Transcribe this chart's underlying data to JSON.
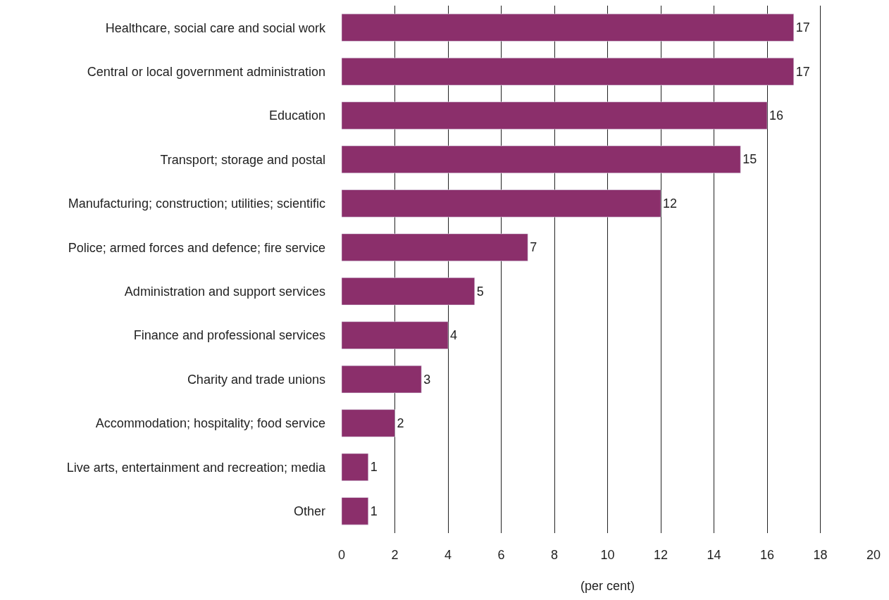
{
  "chart_data": {
    "type": "bar",
    "orientation": "horizontal",
    "xlabel": "(per cent)",
    "categories": [
      "Healthcare, social care and social work",
      "Central or local government administration",
      "Education",
      "Transport; storage and postal",
      "Manufacturing; construction; utilities; scientific",
      "Police; armed forces and defence; fire service",
      "Administration and support services",
      "Finance and professional services",
      "Charity and trade unions",
      "Accommodation; hospitality; food service",
      "Live arts, entertainment and recreation; media",
      "Other"
    ],
    "values": [
      17,
      17,
      16,
      15,
      12,
      7,
      5,
      4,
      3,
      2,
      1,
      1
    ],
    "color": "#8b2f6b",
    "xlim": [
      0,
      20
    ],
    "xticks": [
      0,
      2,
      4,
      6,
      8,
      10,
      12,
      14,
      16,
      18,
      20
    ],
    "grid": "x",
    "data_labels": true
  }
}
